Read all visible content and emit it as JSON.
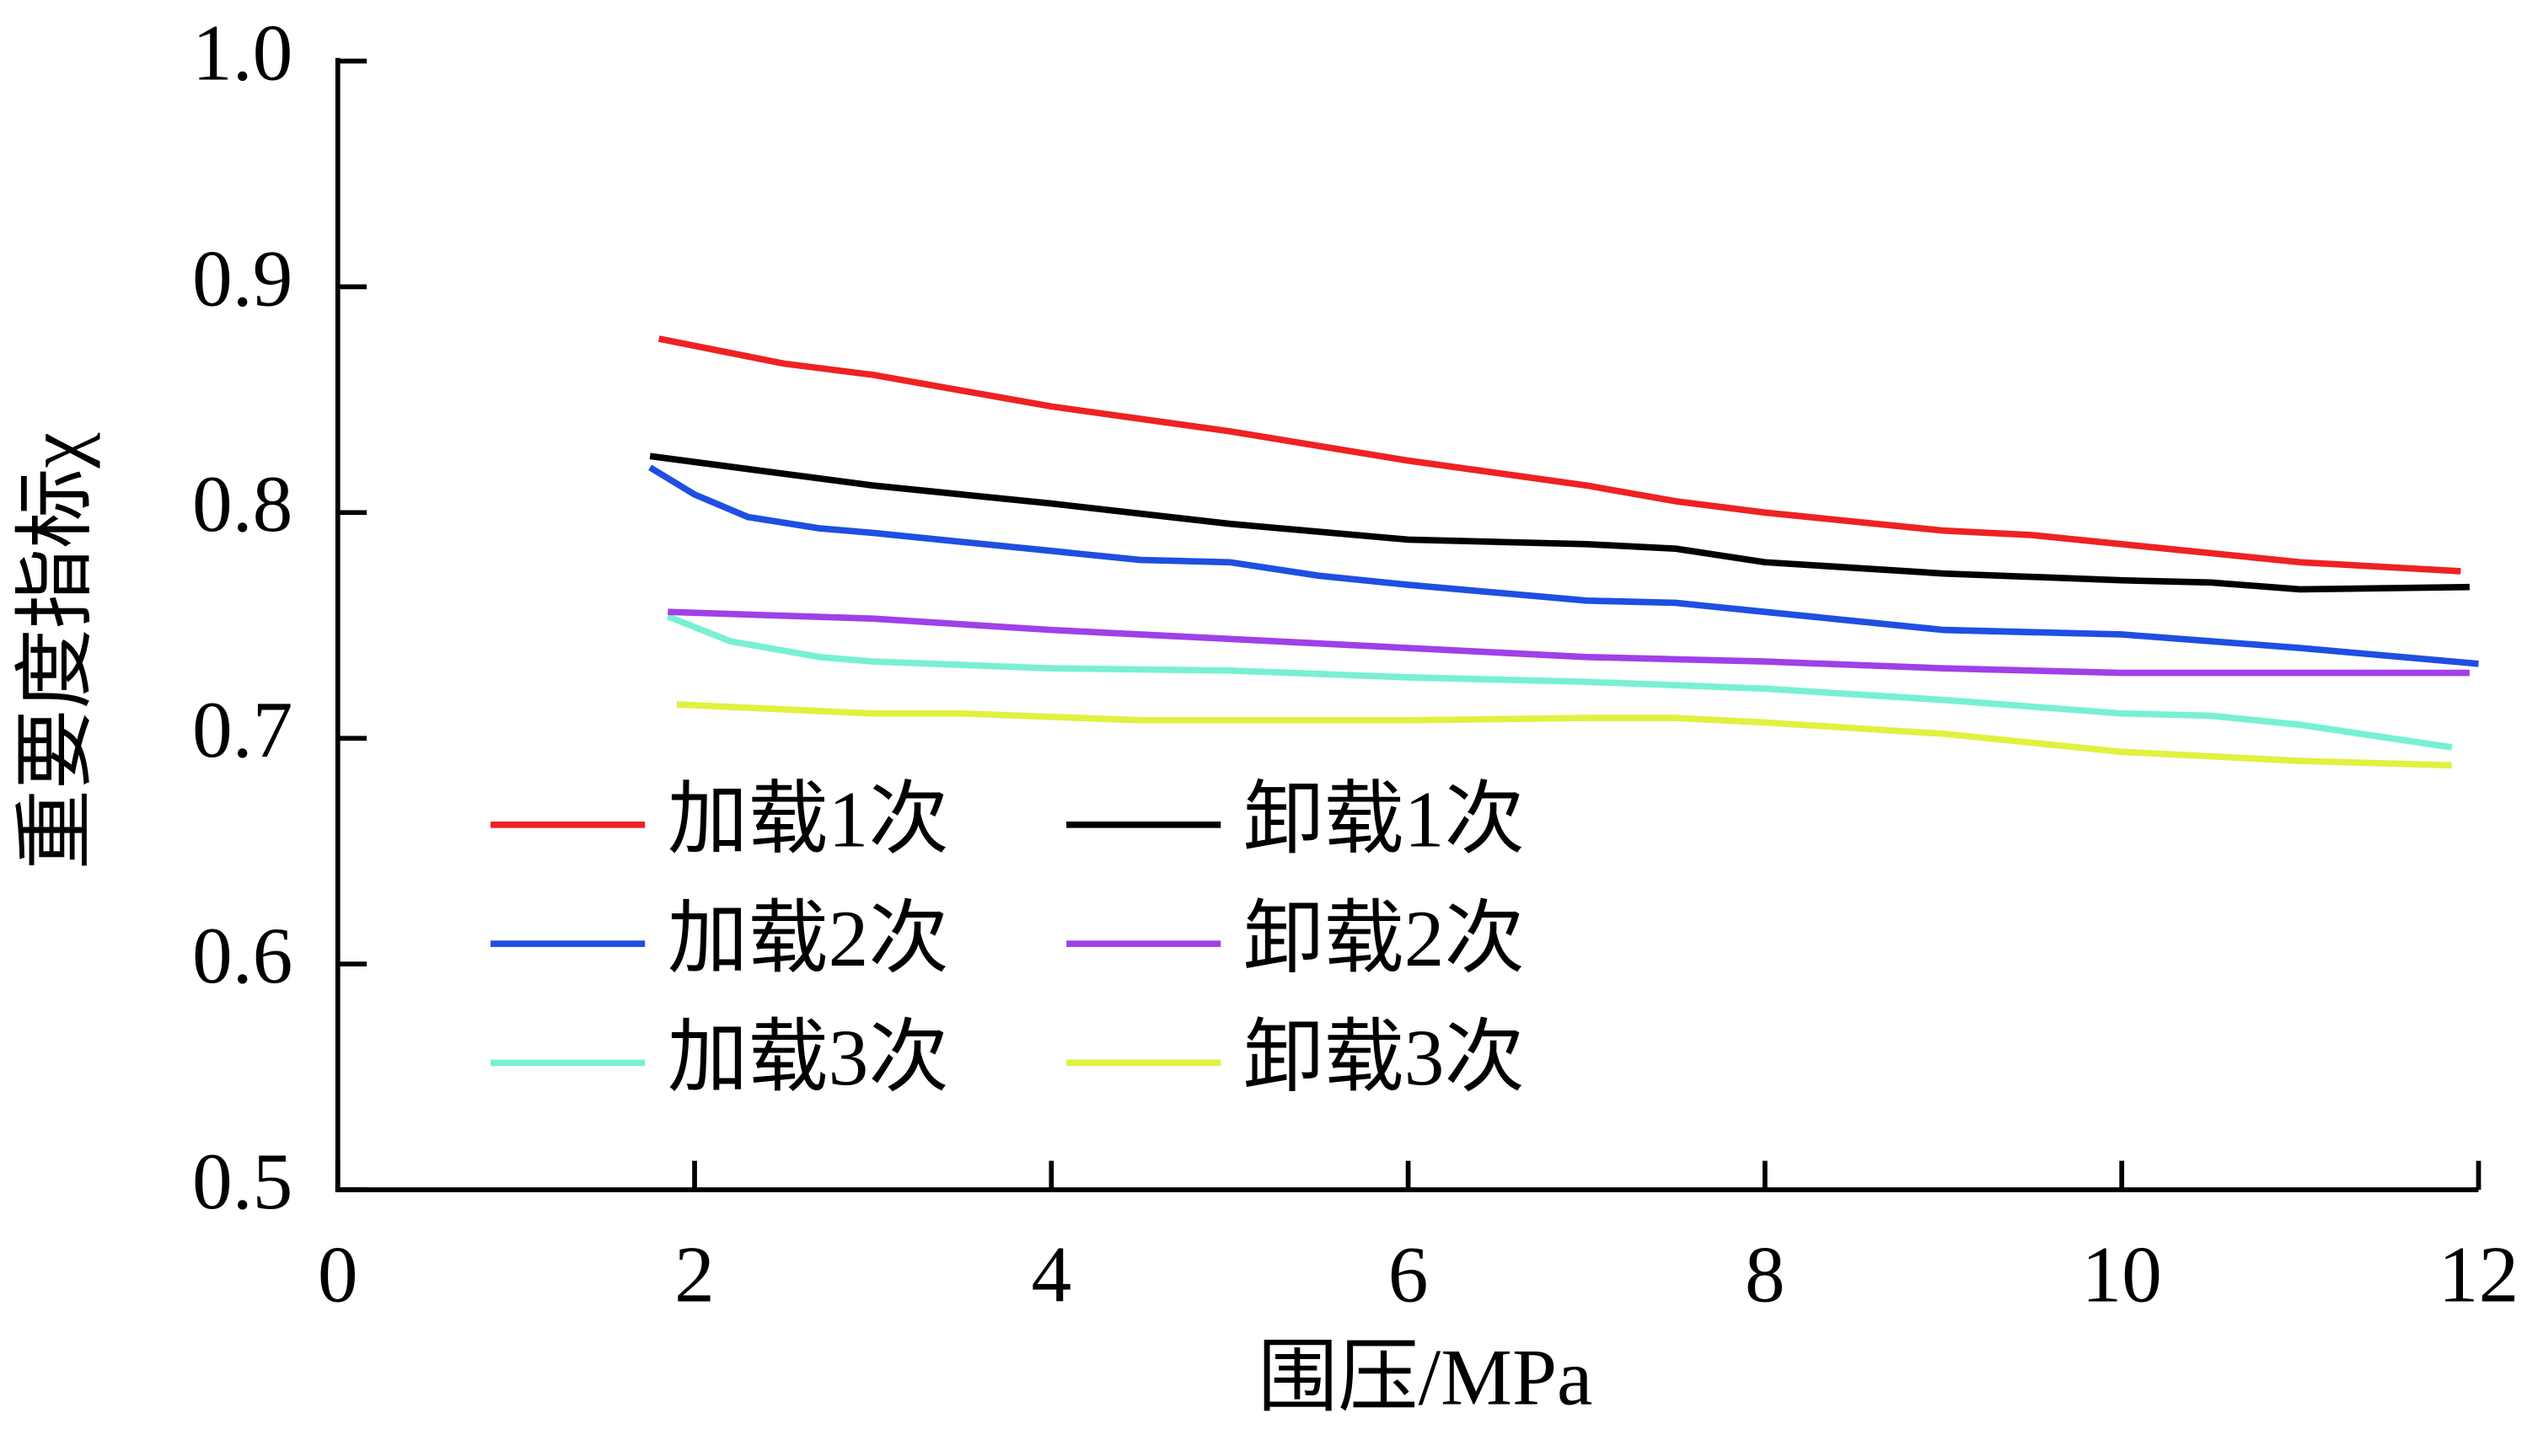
{
  "chart_data": {
    "type": "line",
    "xlabel": "围压/MPa",
    "ylabel": "重要度指标χ",
    "xlim": [
      0,
      12
    ],
    "xticks": [
      0,
      2,
      4,
      6,
      8,
      10,
      12
    ],
    "ylim": [
      0.5,
      1.0
    ],
    "yticks": [
      0.5,
      0.6,
      0.7,
      0.8,
      0.9,
      {
        "value": 1,
        "label": "1.0"
      }
    ],
    "legend": "lower left",
    "series": [
      {
        "name": "加载1次",
        "color": "#ee2222",
        "x": [
          1.8,
          2.5,
          3,
          4,
          5,
          6,
          7,
          7.5,
          8,
          9,
          9.5,
          10,
          11,
          11.9
        ],
        "values": [
          0.877,
          0.866,
          0.861,
          0.847,
          0.836,
          0.823,
          0.812,
          0.805,
          0.8,
          0.792,
          0.79,
          0.786,
          0.778,
          0.774
        ]
      },
      {
        "name": "加载2次",
        "color": "#1f4fe0",
        "x": [
          1.75,
          2,
          2.3,
          2.7,
          3,
          4,
          4.5,
          5,
          5.5,
          6,
          7,
          7.5,
          8,
          9,
          10,
          11,
          12
        ],
        "values": [
          0.82,
          0.808,
          0.798,
          0.793,
          0.791,
          0.783,
          0.779,
          0.778,
          0.772,
          0.768,
          0.761,
          0.76,
          0.756,
          0.748,
          0.746,
          0.74,
          0.733
        ]
      },
      {
        "name": "加载3次",
        "color": "#78f0d4",
        "x": [
          1.85,
          2.2,
          2.7,
          3,
          4,
          5,
          6,
          7,
          8,
          9,
          10,
          10.5,
          11,
          11.85
        ],
        "values": [
          0.754,
          0.743,
          0.736,
          0.734,
          0.731,
          0.73,
          0.727,
          0.725,
          0.722,
          0.717,
          0.711,
          0.71,
          0.706,
          0.696
        ]
      },
      {
        "name": "卸载1次",
        "color": "#000000",
        "x": [
          1.75,
          3,
          4,
          5,
          6,
          7,
          7.5,
          8,
          9,
          10,
          10.5,
          11,
          11.95
        ],
        "values": [
          0.825,
          0.812,
          0.804,
          0.795,
          0.788,
          0.786,
          0.784,
          0.778,
          0.773,
          0.77,
          0.769,
          0.766,
          0.767
        ]
      },
      {
        "name": "卸载2次",
        "color": "#a040e8",
        "x": [
          1.85,
          3,
          4,
          5,
          6,
          7,
          8,
          9,
          10,
          11,
          11.95
        ],
        "values": [
          0.756,
          0.753,
          0.748,
          0.744,
          0.74,
          0.736,
          0.734,
          0.731,
          0.729,
          0.729,
          0.729
        ]
      },
      {
        "name": "卸载3次",
        "color": "#e2f040",
        "x": [
          1.9,
          3,
          3.5,
          4.5,
          5,
          6,
          7,
          7.5,
          8,
          9,
          10,
          11,
          11.85
        ],
        "values": [
          0.715,
          0.711,
          0.711,
          0.708,
          0.708,
          0.708,
          0.709,
          0.709,
          0.707,
          0.702,
          0.694,
          0.69,
          0.688
        ]
      }
    ]
  }
}
